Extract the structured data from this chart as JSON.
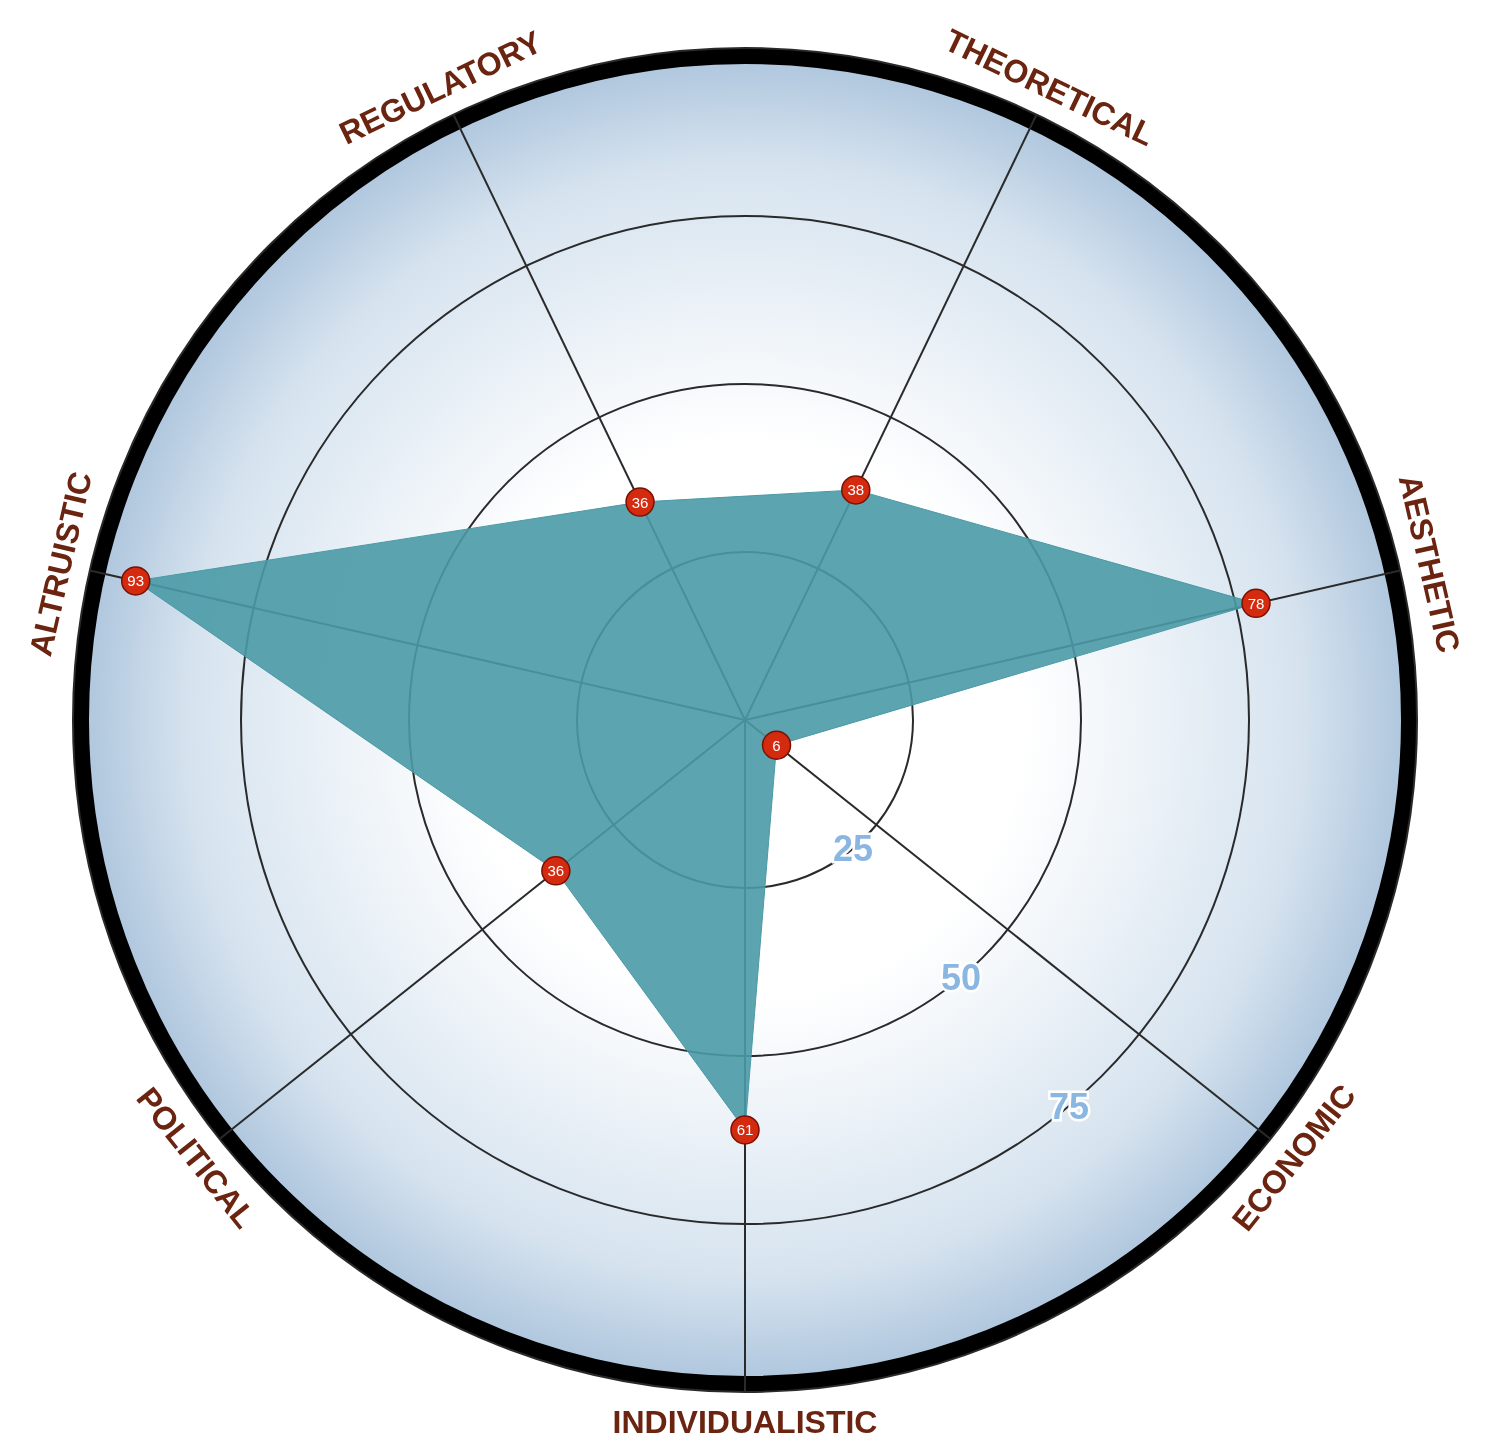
{
  "chart_data": {
    "type": "radar",
    "categories": [
      "THEORETICAL",
      "AESTHETIC",
      "ECONOMIC",
      "INDIVIDUALISTIC",
      "POLITICAL",
      "ALTRUISTIC",
      "REGULATORY"
    ],
    "series": [
      {
        "color": "#4a9aa6",
        "values": [
          38,
          78,
          6,
          61,
          36,
          93,
          36
        ]
      }
    ],
    "ylim": [
      0,
      100
    ],
    "yticks": [
      25,
      50,
      75
    ],
    "grid": true,
    "data_labels": true,
    "marker": "circle"
  }
}
